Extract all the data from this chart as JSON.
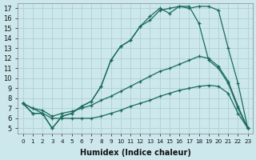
{
  "xlabel": "Humidex (Indice chaleur)",
  "bg_color": "#cce8ec",
  "line_color": "#1a6b5a",
  "xlim": [
    -0.5,
    23.5
  ],
  "ylim": [
    4.5,
    17.5
  ],
  "yticks": [
    5,
    6,
    7,
    8,
    9,
    10,
    11,
    12,
    13,
    14,
    15,
    16,
    17
  ],
  "xtick_labels": [
    "0",
    "1",
    "2",
    "3",
    "4",
    "5",
    "6",
    "7",
    "8",
    "9",
    "10",
    "11",
    "12",
    "13",
    "14",
    "15",
    "16",
    "17",
    "18",
    "19",
    "20",
    "21",
    "22",
    "23"
  ],
  "line1_x": [
    0,
    1,
    2,
    3,
    4,
    5,
    6,
    7,
    8,
    9,
    10,
    11,
    12,
    13,
    14,
    15,
    16,
    17,
    18,
    19,
    20,
    21,
    22,
    23
  ],
  "line1_y": [
    7.5,
    6.5,
    6.5,
    5.0,
    6.2,
    6.5,
    7.2,
    7.7,
    9.2,
    11.8,
    13.2,
    13.8,
    15.2,
    15.8,
    16.8,
    17.0,
    17.2,
    17.0,
    17.2,
    17.2,
    16.8,
    13.0,
    9.5,
    5.0
  ],
  "line2_x": [
    0,
    1,
    2,
    3,
    4,
    5,
    6,
    7,
    8,
    9,
    10,
    11,
    12,
    13,
    14,
    15,
    16,
    17,
    18,
    19,
    20,
    21,
    22,
    23
  ],
  "line2_y": [
    7.5,
    6.5,
    6.5,
    5.0,
    6.2,
    6.5,
    7.2,
    7.7,
    9.2,
    11.8,
    13.2,
    13.8,
    15.2,
    16.2,
    17.0,
    16.5,
    17.2,
    17.2,
    15.5,
    11.8,
    11.0,
    9.5,
    7.0,
    5.0
  ],
  "line3_x": [
    0,
    1,
    2,
    3,
    4,
    5,
    6,
    7,
    8,
    9,
    10,
    11,
    12,
    13,
    14,
    15,
    16,
    17,
    18,
    19,
    20,
    21,
    22,
    23
  ],
  "line3_y": [
    7.5,
    7.0,
    6.8,
    6.2,
    6.5,
    6.7,
    7.0,
    7.3,
    7.8,
    8.2,
    8.7,
    9.2,
    9.7,
    10.2,
    10.7,
    11.0,
    11.4,
    11.8,
    12.2,
    12.0,
    11.2,
    9.7,
    7.2,
    5.0
  ],
  "line4_x": [
    0,
    1,
    2,
    3,
    4,
    5,
    6,
    7,
    8,
    9,
    10,
    11,
    12,
    13,
    14,
    15,
    16,
    17,
    18,
    19,
    20,
    21,
    22,
    23
  ],
  "line4_y": [
    7.5,
    7.0,
    6.5,
    6.0,
    6.0,
    6.0,
    6.0,
    6.0,
    6.2,
    6.5,
    6.8,
    7.2,
    7.5,
    7.8,
    8.2,
    8.5,
    8.8,
    9.0,
    9.2,
    9.3,
    9.2,
    8.5,
    6.5,
    5.0
  ]
}
